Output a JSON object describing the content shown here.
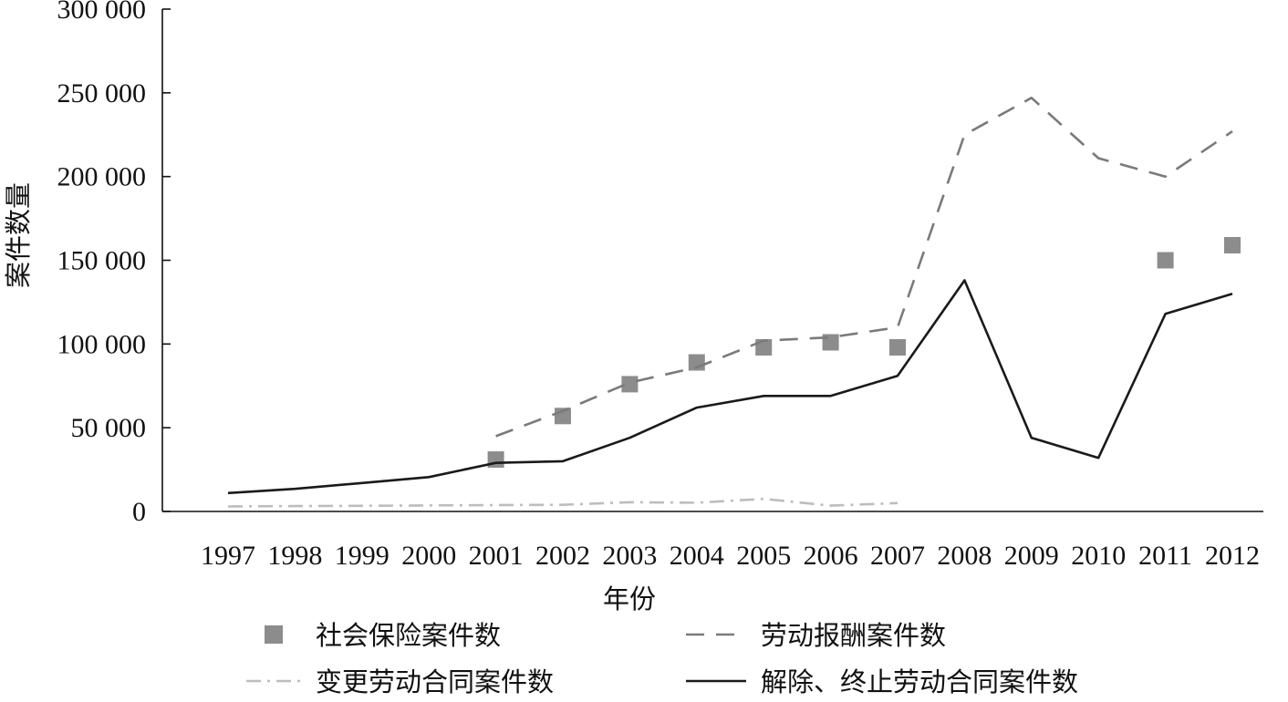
{
  "chart_data": {
    "type": "line",
    "title": "",
    "xlabel": "年份",
    "ylabel": "案件数量",
    "categories": [
      "1997",
      "1998",
      "1999",
      "2000",
      "2001",
      "2002",
      "2003",
      "2004",
      "2005",
      "2006",
      "2007",
      "2008",
      "2009",
      "2010",
      "2011",
      "2012"
    ],
    "ylim": [
      0,
      300000
    ],
    "yticks": [
      "0",
      "50 000",
      "100 000",
      "150 000",
      "200 000",
      "250 000",
      "300 000"
    ],
    "grid": false,
    "legend_position": "bottom",
    "series": [
      {
        "name": "社会保险案件数",
        "style": "square-markers",
        "color": "#8c8c8c",
        "values": [
          null,
          null,
          null,
          null,
          31000,
          57000,
          76000,
          89000,
          98000,
          101000,
          98000,
          null,
          null,
          null,
          150000,
          159000
        ]
      },
      {
        "name": "劳动报酬案件数",
        "style": "dashed",
        "color": "#7a7a7a",
        "values": [
          null,
          null,
          null,
          null,
          45000,
          60000,
          77000,
          86000,
          102000,
          104000,
          110000,
          225000,
          247000,
          211000,
          200000,
          227000
        ]
      },
      {
        "name": "变更劳动合同案件数",
        "style": "dash-dot",
        "color": "#bdbdbd",
        "values": [
          3000,
          3200,
          3400,
          3600,
          3800,
          4000,
          5500,
          5200,
          7500,
          3500,
          5000,
          null,
          null,
          null,
          null,
          null
        ]
      },
      {
        "name": "解除、终止劳动合同案件数",
        "style": "solid",
        "color": "#1a1a1a",
        "values": [
          11000,
          13500,
          17000,
          20500,
          29000,
          30000,
          44000,
          62000,
          69000,
          69000,
          81000,
          138000,
          44000,
          32000,
          118000,
          130000
        ]
      }
    ]
  }
}
